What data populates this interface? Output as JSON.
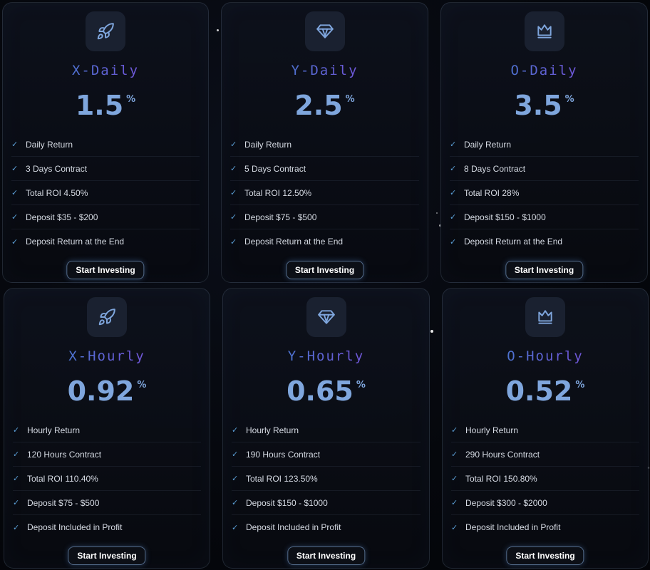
{
  "colors": {
    "accent": "#7fa6dd",
    "gradient_start": "#2d8fc9",
    "gradient_end": "#8a4fd6",
    "check": "#5b9fd6"
  },
  "plans": [
    {
      "icon": "rocket-icon",
      "name": "X-Daily",
      "rate": "1.5",
      "unit": "%",
      "features": [
        "Daily Return",
        "3 Days Contract",
        "Total ROI 4.50%",
        "Deposit $35 - $200",
        "Deposit Return at the End"
      ],
      "button": "Start Investing"
    },
    {
      "icon": "diamond-icon",
      "name": "Y-Daily",
      "rate": "2.5",
      "unit": "%",
      "features": [
        "Daily Return",
        "5 Days Contract",
        "Total ROI 12.50%",
        "Deposit $75 - $500",
        "Deposit Return at the End"
      ],
      "button": "Start Investing"
    },
    {
      "icon": "crown-icon",
      "name": "O-Daily",
      "rate": "3.5",
      "unit": "%",
      "features": [
        "Daily Return",
        "8 Days Contract",
        "Total ROI 28%",
        "Deposit $150 - $1000",
        "Deposit Return at the End"
      ],
      "button": "Start Investing"
    },
    {
      "icon": "rocket-icon",
      "name": "X-Hourly",
      "rate": "0.92",
      "unit": "%",
      "features": [
        "Hourly Return",
        "120 Hours Contract",
        "Total ROI 110.40%",
        "Deposit $75 - $500",
        "Deposit Included in Profit"
      ],
      "button": "Start Investing"
    },
    {
      "icon": "diamond-icon",
      "name": "Y-Hourly",
      "rate": "0.65",
      "unit": "%",
      "features": [
        "Hourly Return",
        "190 Hours Contract",
        "Total ROI 123.50%",
        "Deposit $150 - $1000",
        "Deposit Included in Profit"
      ],
      "button": "Start Investing"
    },
    {
      "icon": "crown-icon",
      "name": "O-Hourly",
      "rate": "0.52",
      "unit": "%",
      "features": [
        "Hourly Return",
        "290 Hours Contract",
        "Total ROI 150.80%",
        "Deposit $300 - $2000",
        "Deposit Included in Profit"
      ],
      "button": "Start Investing"
    }
  ]
}
